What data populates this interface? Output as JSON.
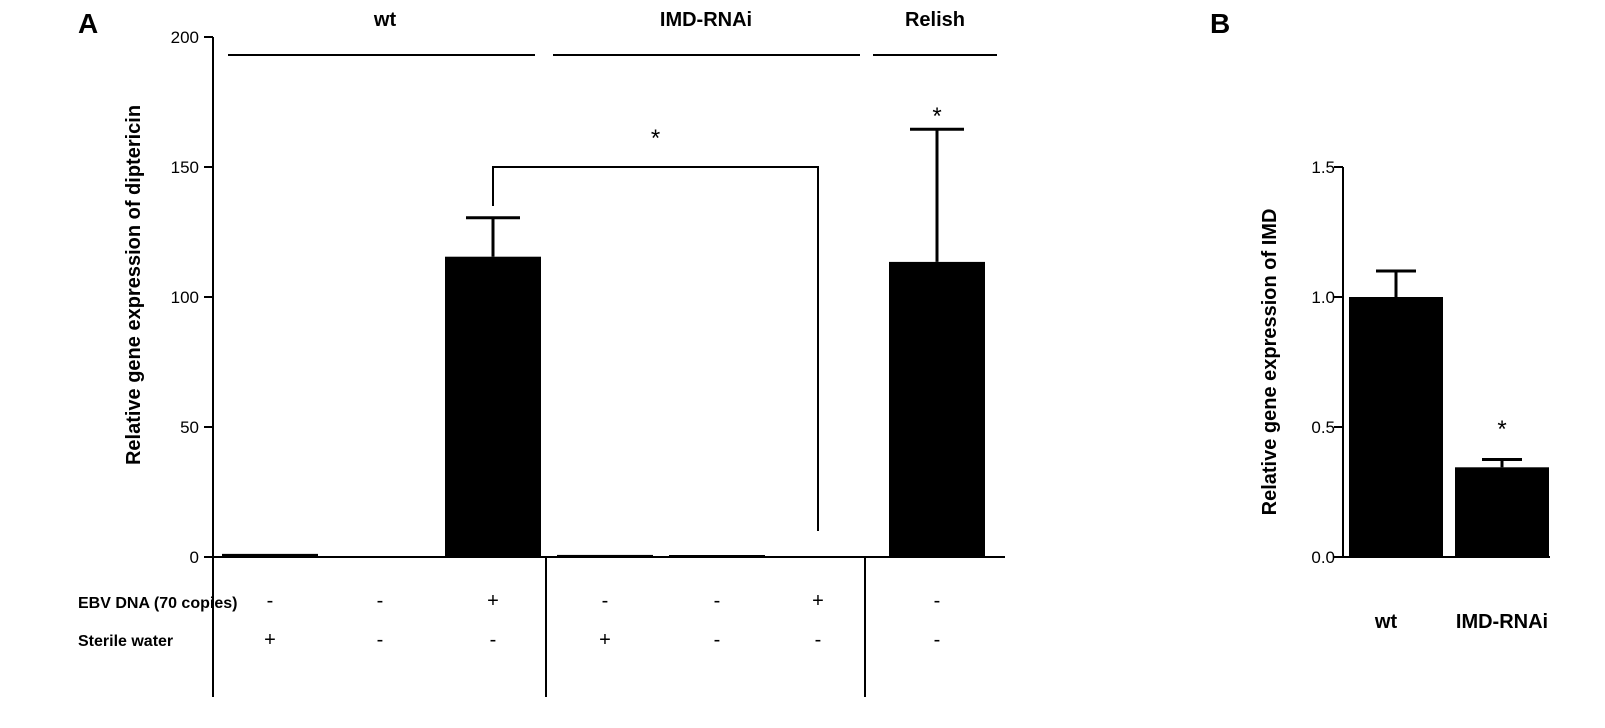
{
  "panel_a": {
    "label": "A",
    "group_labels": [
      "wt",
      "IMD-RNAi",
      "Relish"
    ],
    "row_labels": [
      "EBV DNA (70 copies)",
      "Sterile water"
    ],
    "ebv_signs": [
      "-",
      "-",
      "+",
      "-",
      "-",
      "+",
      "-"
    ],
    "water_signs": [
      "+",
      "-",
      "-",
      "+",
      "-",
      "-",
      "-"
    ],
    "bracket_star": "*",
    "bar_star": "*"
  },
  "panel_b": {
    "label": "B",
    "star": "*"
  },
  "chart_data": [
    {
      "type": "bar",
      "title": "",
      "xlabel": "",
      "ylabel": "Relative gene expression of diptericin",
      "ylim": [
        0,
        200
      ],
      "yticks": [
        0,
        50,
        100,
        150,
        200
      ],
      "categories": [
        "wt 1",
        "wt 2",
        "wt 3",
        "IMD-RNAi 1",
        "IMD-RNAi 2",
        "IMD-RNAi 3",
        "Relish"
      ],
      "values": [
        1.2,
        0,
        115.5,
        0.8,
        0.4,
        0,
        113.5
      ],
      "errors": [
        0.5,
        0,
        15,
        0.3,
        0.2,
        0,
        51
      ],
      "significance": [
        "bracket between bar 3 and bar 6: *",
        "bar 7: *"
      ]
    },
    {
      "type": "bar",
      "title": "",
      "xlabel": "",
      "ylabel": "Relative gene expression of IMD",
      "ylim": [
        0,
        1.5
      ],
      "yticks": [
        "0.0",
        "0.5",
        "1.0",
        "1.5"
      ],
      "categories": [
        "wt",
        "IMD-RNAi"
      ],
      "values": [
        1.0,
        0.345
      ],
      "errors": [
        0.1,
        0.03
      ],
      "significance": [
        "IMD-RNAi: *"
      ]
    }
  ]
}
